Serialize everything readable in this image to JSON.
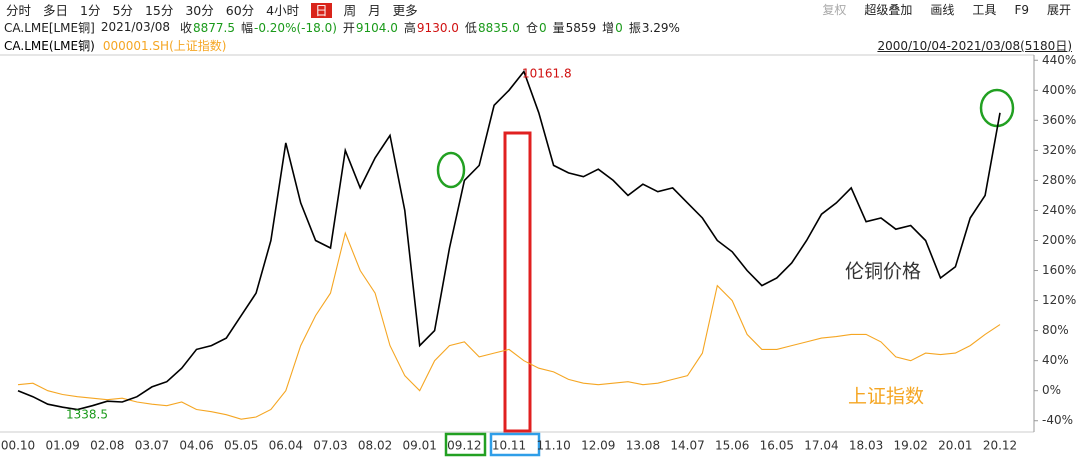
{
  "toolbar": {
    "left": [
      "分时",
      "多日",
      "1分",
      "5分",
      "15分",
      "30分",
      "60分",
      "4小时",
      "日",
      "周",
      "月",
      "更多"
    ],
    "right": [
      "复权",
      "超级叠加",
      "画线",
      "工具",
      "F9",
      "展开"
    ]
  },
  "quote": {
    "symbol": "CA.LME[LME铜]",
    "date": "2021/03/08",
    "items": [
      {
        "label": "收",
        "value": "8877.5",
        "color": "#1a9a1a"
      },
      {
        "label": "幅",
        "value": "-0.20%(-18.0)",
        "color": "#1a9a1a"
      },
      {
        "label": "开",
        "value": "9104.0",
        "color": "#1a9a1a"
      },
      {
        "label": "高",
        "value": "9130.0",
        "color": "#d01010"
      },
      {
        "label": "低",
        "value": "8835.0",
        "color": "#1a9a1a"
      },
      {
        "label": "仓",
        "value": "0",
        "color": "#1a9a1a"
      },
      {
        "label": "量",
        "value": "5859",
        "color": "#222222"
      },
      {
        "label": "增",
        "value": "0",
        "color": "#1a9a1a"
      },
      {
        "label": "振",
        "value": "3.29%",
        "color": "#222222"
      }
    ],
    "range": "2000/10/04-2021/03/08(5180日)"
  },
  "chart_data": {
    "type": "line",
    "categories": [
      "00.10",
      null,
      null,
      "01.09",
      null,
      null,
      "02.08",
      null,
      null,
      "03.07",
      null,
      null,
      "04.06",
      null,
      null,
      "05.05",
      null,
      null,
      "06.04",
      null,
      null,
      "07.03",
      null,
      null,
      "08.02",
      null,
      null,
      "09.01",
      null,
      null,
      "09.12",
      null,
      null,
      "10.11",
      null,
      null,
      "11.10",
      null,
      null,
      "12.09",
      null,
      null,
      "13.08",
      null,
      null,
      "14.07",
      null,
      null,
      "15.06",
      null,
      null,
      "16.05",
      null,
      null,
      "17.04",
      null,
      null,
      "18.03",
      null,
      null,
      "19.02",
      null,
      null,
      "20.01",
      null,
      null,
      "20.12"
    ],
    "series": [
      {
        "name": "CA.LME(LME铜)",
        "color": "#000000",
        "values": [
          0,
          -8,
          -18,
          -22,
          -25,
          -20,
          -14,
          -15,
          -8,
          5,
          12,
          30,
          55,
          60,
          70,
          100,
          130,
          200,
          330,
          250,
          200,
          190,
          320,
          270,
          310,
          340,
          240,
          60,
          80,
          190,
          280,
          300,
          380,
          400,
          425,
          370,
          300,
          290,
          285,
          295,
          280,
          260,
          275,
          265,
          270,
          250,
          230,
          200,
          185,
          160,
          140,
          150,
          170,
          200,
          235,
          250,
          270,
          225,
          230,
          215,
          220,
          200,
          150,
          165,
          230,
          260,
          370
        ]
      },
      {
        "name": "000001.SH(上证指数)",
        "color": "#f5a623",
        "values": [
          8,
          10,
          0,
          -5,
          -8,
          -10,
          -12,
          -10,
          -15,
          -18,
          -20,
          -15,
          -25,
          -28,
          -32,
          -38,
          -35,
          -25,
          0,
          60,
          100,
          130,
          210,
          160,
          130,
          60,
          20,
          0,
          40,
          60,
          65,
          45,
          50,
          55,
          40,
          30,
          25,
          15,
          10,
          8,
          10,
          12,
          8,
          10,
          15,
          20,
          50,
          140,
          120,
          75,
          55,
          55,
          60,
          65,
          70,
          72,
          75,
          75,
          65,
          45,
          40,
          50,
          48,
          50,
          60,
          75,
          88
        ]
      }
    ],
    "ylim": [
      -55,
      447
    ],
    "yticks": [
      {
        "value": -40,
        "label": "-40%"
      },
      {
        "value": 0,
        "label": "0%"
      },
      {
        "value": 40,
        "label": "40%"
      },
      {
        "value": 80,
        "label": "80%"
      },
      {
        "value": 120,
        "label": "120%"
      },
      {
        "value": 160,
        "label": "160%"
      },
      {
        "value": 200,
        "label": "200%"
      },
      {
        "value": 240,
        "label": "240%"
      },
      {
        "value": 280,
        "label": "280%"
      },
      {
        "value": 320,
        "label": "320%"
      },
      {
        "value": 360,
        "label": "360%"
      },
      {
        "value": 400,
        "label": "400%"
      },
      {
        "value": 440,
        "label": "440%"
      }
    ],
    "grid": false,
    "annotations": [
      {
        "text": "10161.8",
        "color": "#d01010"
      },
      {
        "text": "1338.5",
        "color": "#1a9a1a"
      },
      {
        "text": "伦铜价格",
        "color": "#333333"
      },
      {
        "text": "上证指数",
        "color": "#f5a623"
      }
    ]
  }
}
